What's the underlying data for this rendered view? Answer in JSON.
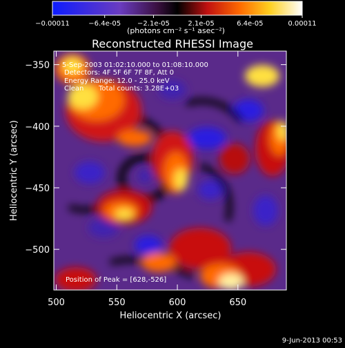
{
  "colorbar": {
    "tick_labels": [
      "-0.00011",
      "-6.4e-05",
      "-2.1e-05",
      "2.1e-05",
      "6.4e-05",
      "0.00011"
    ],
    "tick_values": [
      -0.00011,
      -6.4e-05,
      -2.1e-05,
      2.1e-05,
      6.4e-05,
      0.00011
    ],
    "range": [
      -0.00011,
      0.00011
    ],
    "units_label": "(photons cm⁻² s⁻¹ asec⁻²)"
  },
  "title": "Reconstructed RHESSI Image",
  "annotations": {
    "time_range": "5-Sep-2003 01:02:10.000 to 01:08:10.000",
    "detectors": "Detectors: 4F 5F 6F 7F 8F, Att 0",
    "energy": "Energy Range: 12.0 - 25.0 keV",
    "method": "Clean",
    "counts": "Total counts: 3.28E+03",
    "peak": "Position of Peak = [628,-526]"
  },
  "x_axis": {
    "label": "Heliocentric X (arcsec)",
    "range": [
      498,
      690
    ],
    "ticks": [
      500,
      550,
      600,
      650
    ],
    "tick_labels": [
      "500",
      "550",
      "600",
      "650"
    ]
  },
  "y_axis": {
    "label": "Heliocentric Y (arcsec)",
    "range": [
      -533,
      -339
    ],
    "ticks": [
      -350,
      -400,
      -450,
      -500
    ],
    "tick_labels": [
      "-350",
      "-400",
      "-450",
      "-500"
    ]
  },
  "footer_date": "9-Jun-2013 00:53"
}
